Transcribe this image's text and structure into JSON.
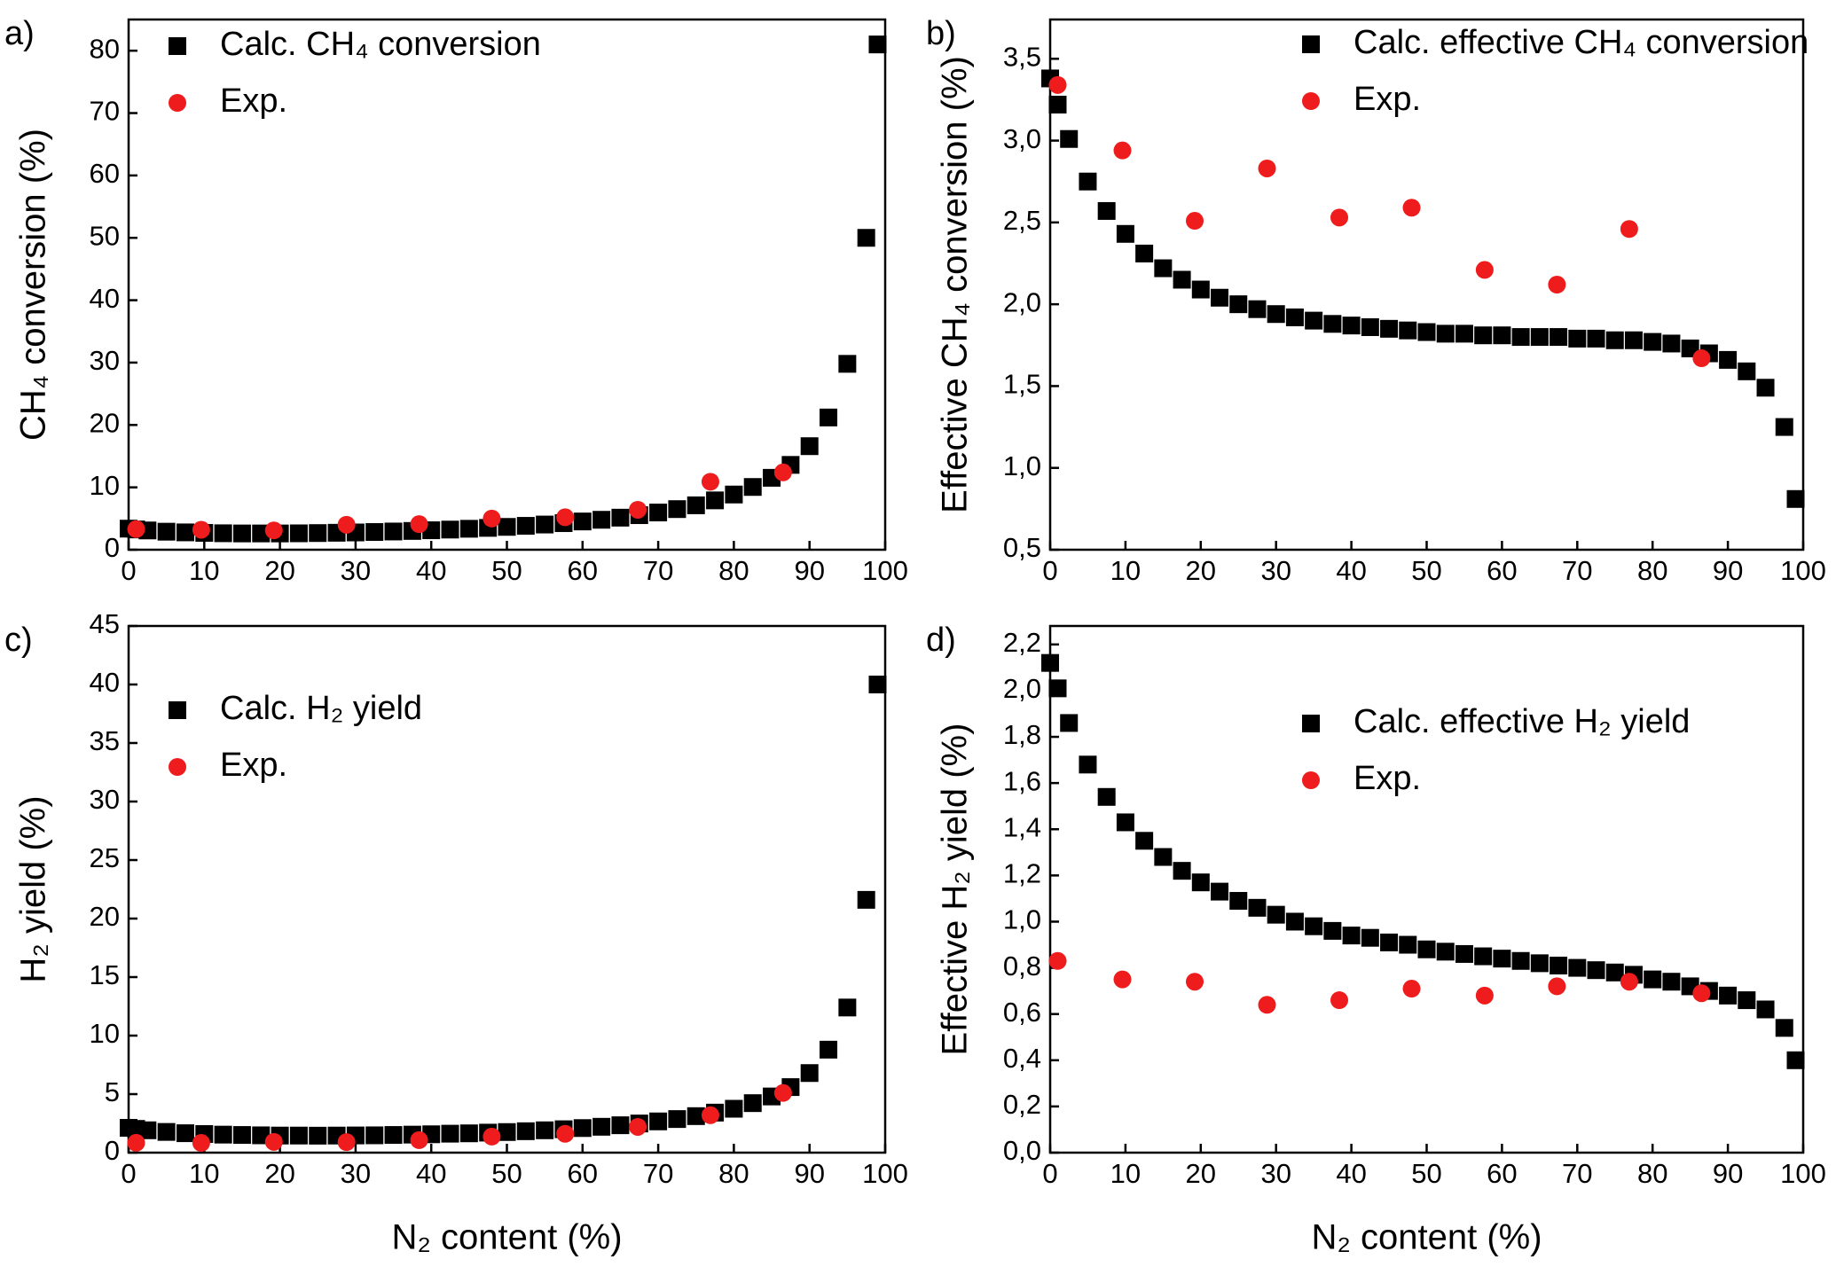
{
  "chart_data": [
    {
      "type": "scatter",
      "label": "a)",
      "ylabel": "CH₄ conversion (%)",
      "xlim": [
        0,
        100
      ],
      "ylim": [
        0,
        85
      ],
      "legend": "upper left",
      "xticks": [
        0,
        10,
        20,
        30,
        40,
        50,
        60,
        70,
        80,
        90,
        100
      ],
      "yticks": [
        0,
        10,
        20,
        30,
        40,
        50,
        60,
        70,
        80
      ],
      "series": [
        {
          "name": "Calc. CH₄ conversion",
          "color": "#000000",
          "marker": "square",
          "x": [
            0,
            1,
            2.5,
            5,
            7.5,
            10,
            12.5,
            15,
            17.5,
            20,
            22.5,
            25,
            27.5,
            30,
            32.5,
            35,
            37.5,
            40,
            42.5,
            45,
            47.5,
            50,
            52.5,
            55,
            57.5,
            60,
            62.5,
            65,
            67.5,
            70,
            72.5,
            75,
            77.5,
            80,
            82.5,
            85,
            87.5,
            90,
            92.5,
            95,
            97.5,
            99
          ],
          "values": [
            3.38,
            3.25,
            3.09,
            2.89,
            2.78,
            2.7,
            2.64,
            2.61,
            2.61,
            2.61,
            2.63,
            2.67,
            2.72,
            2.77,
            2.84,
            2.92,
            3.01,
            3.12,
            3.23,
            3.36,
            3.5,
            3.66,
            3.83,
            4.04,
            4.26,
            4.53,
            4.8,
            5.14,
            5.54,
            5.97,
            6.51,
            7.12,
            7.91,
            8.85,
            10.06,
            11.53,
            13.6,
            16.6,
            21.2,
            29.8,
            50,
            81
          ]
        },
        {
          "name": "Exp.",
          "color": "#ee1c1c",
          "marker": "circle",
          "x": [
            1,
            9.6,
            19.2,
            28.8,
            38.4,
            48,
            57.7,
            67.3,
            76.9,
            86.5
          ],
          "values": [
            3.3,
            3.2,
            3.1,
            4.0,
            4.1,
            5.0,
            5.2,
            6.4,
            10.9,
            12.4
          ]
        }
      ]
    },
    {
      "type": "scatter",
      "label": "b)",
      "ylabel": "Effective CH₄ conversion (%)",
      "xlim": [
        0,
        100
      ],
      "ylim": [
        0.5,
        3.74
      ],
      "legend": "upper right",
      "xticks": [
        0,
        10,
        20,
        30,
        40,
        50,
        60,
        70,
        80,
        90,
        100
      ],
      "yticks": [
        {
          "value": 0.5,
          "label": "0,5"
        },
        {
          "value": 1,
          "label": "1,0"
        },
        {
          "value": 1.5,
          "label": "1,5"
        },
        {
          "value": 2,
          "label": "2,0"
        },
        {
          "value": 2.5,
          "label": "2,5"
        },
        {
          "value": 3,
          "label": "3,0"
        },
        {
          "value": 3.5,
          "label": "3,5"
        }
      ],
      "series": [
        {
          "name": "Calc. effective CH₄ conversion",
          "color": "#000000",
          "marker": "square",
          "x": [
            0,
            1,
            2.5,
            5,
            7.5,
            10,
            12.5,
            15,
            17.5,
            20,
            22.5,
            25,
            27.5,
            30,
            32.5,
            35,
            37.5,
            40,
            42.5,
            45,
            47.5,
            50,
            52.5,
            55,
            57.5,
            60,
            62.5,
            65,
            67.5,
            70,
            72.5,
            75,
            77.5,
            80,
            82.5,
            85,
            87.5,
            90,
            92.5,
            95,
            97.5,
            99
          ],
          "values": [
            3.38,
            3.22,
            3.01,
            2.75,
            2.57,
            2.43,
            2.31,
            2.22,
            2.15,
            2.09,
            2.04,
            2.0,
            1.97,
            1.94,
            1.92,
            1.9,
            1.88,
            1.87,
            1.86,
            1.85,
            1.84,
            1.83,
            1.82,
            1.82,
            1.81,
            1.81,
            1.8,
            1.8,
            1.8,
            1.79,
            1.79,
            1.78,
            1.78,
            1.77,
            1.76,
            1.73,
            1.7,
            1.66,
            1.59,
            1.49,
            1.25,
            0.81
          ]
        },
        {
          "name": "Exp.",
          "color": "#ee1c1c",
          "marker": "circle",
          "x": [
            1,
            9.6,
            19.2,
            28.8,
            38.4,
            48,
            57.7,
            67.3,
            76.9,
            86.5
          ],
          "values": [
            3.34,
            2.94,
            2.51,
            2.83,
            2.53,
            2.59,
            2.21,
            2.12,
            2.46,
            1.67
          ]
        }
      ]
    },
    {
      "type": "scatter",
      "label": "c)",
      "ylabel": "H₂ yield (%)",
      "xlabel": "N₂ content (%)",
      "xlim": [
        0,
        100
      ],
      "ylim": [
        0,
        45
      ],
      "legend": "upper left",
      "xticks": [
        0,
        10,
        20,
        30,
        40,
        50,
        60,
        70,
        80,
        90,
        100
      ],
      "yticks": [
        0,
        5,
        10,
        15,
        20,
        25,
        30,
        35,
        40,
        45
      ],
      "series": [
        {
          "name": "Calc. H₂ yield",
          "color": "#000000",
          "marker": "square",
          "x": [
            0,
            1,
            2.5,
            5,
            7.5,
            10,
            12.5,
            15,
            17.5,
            20,
            22.5,
            25,
            27.5,
            30,
            32.5,
            35,
            37.5,
            40,
            42.5,
            45,
            47.5,
            50,
            52.5,
            55,
            57.5,
            60,
            62.5,
            65,
            67.5,
            70,
            72.5,
            75,
            77.5,
            80,
            82.5,
            85,
            87.5,
            90,
            92.5,
            95,
            97.5,
            99
          ],
          "values": [
            2.12,
            2.03,
            1.91,
            1.77,
            1.66,
            1.59,
            1.54,
            1.51,
            1.48,
            1.46,
            1.46,
            1.45,
            1.46,
            1.47,
            1.48,
            1.51,
            1.54,
            1.57,
            1.62,
            1.65,
            1.71,
            1.76,
            1.83,
            1.91,
            2.0,
            2.1,
            2.21,
            2.34,
            2.49,
            2.67,
            2.87,
            3.12,
            3.42,
            3.75,
            4.23,
            4.8,
            5.6,
            6.8,
            8.8,
            12.4,
            21.6,
            40
          ]
        },
        {
          "name": "Exp.",
          "color": "#ee1c1c",
          "marker": "circle",
          "x": [
            1,
            9.6,
            19.2,
            28.8,
            38.4,
            48,
            57.7,
            67.3,
            76.9,
            86.5
          ],
          "values": [
            0.84,
            0.83,
            0.92,
            0.9,
            1.07,
            1.37,
            1.61,
            2.2,
            3.2,
            5.1
          ]
        }
      ]
    },
    {
      "type": "scatter",
      "label": "d)",
      "ylabel": "Effective H₂ yield (%)",
      "xlabel": "N₂ content (%)",
      "xlim": [
        0,
        100
      ],
      "ylim": [
        0,
        2.28
      ],
      "legend": "upper right",
      "xticks": [
        0,
        10,
        20,
        30,
        40,
        50,
        60,
        70,
        80,
        90,
        100
      ],
      "yticks": [
        {
          "value": 0,
          "label": "0,0"
        },
        {
          "value": 0.2,
          "label": "0,2"
        },
        {
          "value": 0.4,
          "label": "0,4"
        },
        {
          "value": 0.6,
          "label": "0,6"
        },
        {
          "value": 0.8,
          "label": "0,8"
        },
        {
          "value": 1,
          "label": "1,0"
        },
        {
          "value": 1.2,
          "label": "1,2"
        },
        {
          "value": 1.4,
          "label": "1,4"
        },
        {
          "value": 1.6,
          "label": "1,6"
        },
        {
          "value": 1.8,
          "label": "1,8"
        },
        {
          "value": 2,
          "label": "2,0"
        },
        {
          "value": 2.2,
          "label": "2,2"
        }
      ],
      "series": [
        {
          "name": "Calc. effective H₂ yield",
          "color": "#000000",
          "marker": "square",
          "x": [
            0,
            1,
            2.5,
            5,
            7.5,
            10,
            12.5,
            15,
            17.5,
            20,
            22.5,
            25,
            27.5,
            30,
            32.5,
            35,
            37.5,
            40,
            42.5,
            45,
            47.5,
            50,
            52.5,
            55,
            57.5,
            60,
            62.5,
            65,
            67.5,
            70,
            72.5,
            75,
            77.5,
            80,
            82.5,
            85,
            87.5,
            90,
            92.5,
            95,
            97.5,
            99
          ],
          "values": [
            2.12,
            2.01,
            1.86,
            1.68,
            1.54,
            1.43,
            1.35,
            1.28,
            1.22,
            1.17,
            1.13,
            1.09,
            1.06,
            1.03,
            1.0,
            0.98,
            0.96,
            0.94,
            0.93,
            0.91,
            0.9,
            0.88,
            0.87,
            0.86,
            0.85,
            0.84,
            0.83,
            0.82,
            0.81,
            0.8,
            0.79,
            0.78,
            0.77,
            0.75,
            0.74,
            0.72,
            0.7,
            0.68,
            0.66,
            0.62,
            0.54,
            0.4
          ]
        },
        {
          "name": "Exp.",
          "color": "#ee1c1c",
          "marker": "circle",
          "x": [
            1,
            9.6,
            19.2,
            28.8,
            38.4,
            48,
            57.7,
            67.3,
            76.9,
            86.5
          ],
          "values": [
            0.83,
            0.75,
            0.74,
            0.64,
            0.66,
            0.71,
            0.68,
            0.72,
            0.74,
            0.69
          ]
        }
      ]
    }
  ]
}
